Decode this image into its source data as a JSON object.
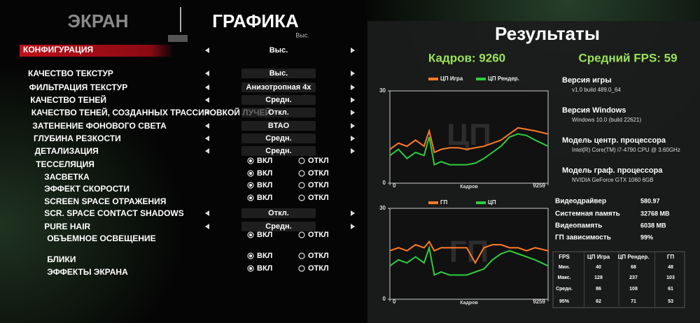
{
  "header": {
    "tabs": [
      "ЭКРАН",
      "ГРАФИКА"
    ],
    "preset": "Выс."
  },
  "config": {
    "label": "КОНФИГУРАЦИЯ",
    "value": "Выс."
  },
  "toggle_labels": [
    "ВКЛ",
    "ОТКЛ"
  ],
  "settings": [
    {
      "label": "КАЧЕСТВО ТЕКСТУР",
      "value": "Выс."
    },
    {
      "label": "ФИЛЬТРАЦИЯ ТЕКСТУР",
      "value": "Анизотропная 4х"
    },
    {
      "label": "КАЧЕСТВО ТЕНЕЙ",
      "value": "Средн."
    },
    {
      "label": "КАЧЕСТВО ТЕНЕЙ, СОЗДАННЫХ ТРАССИРОВКОЙ ЛУЧЕЙ",
      "value": "Откл."
    },
    {
      "label": "ЗАТЕНЕНИЕ ФОНОВОГО СВЕТА",
      "value": "BTAO"
    },
    {
      "label": "ГЛУБИНА РЕЗКОСТИ",
      "value": "Средн."
    },
    {
      "label": "ДЕТАЛИЗАЦИЯ",
      "value": "Средн."
    },
    {
      "label": "ТЕССЕЛЯЦИЯ",
      "selected": 0
    },
    {
      "label": "ЗАСВЕТКА",
      "selected": 0
    },
    {
      "label": "ЭФФЕКТ СКОРОСТИ",
      "selected": 0
    },
    {
      "label": "SCREEN SPACE ОТРАЖЕНИЯ",
      "selected": 0
    },
    {
      "label": "SCR. SPACE CONTACT SHADOWS",
      "value": "Откл."
    },
    {
      "label": "PURE HAIR",
      "value": "Средн."
    },
    {
      "label": "ОБЪЕМНОЕ ОСВЕЩЕНИЕ",
      "selected": 0
    },
    {
      "label": "БЛИКИ",
      "selected": 0
    },
    {
      "label": "ЭФФЕКТЫ ЭКРАНА",
      "selected": 0
    }
  ],
  "results": {
    "title": "Результаты",
    "frames": "Кадров: 9260",
    "avg_fps": "Средний FPS: 59",
    "charts": [
      {
        "type": "line",
        "watermark": "ЦП",
        "xlabel": "Кадров",
        "x": [
          0,
          500,
          1000,
          1500,
          2000,
          2300,
          2600,
          3000,
          3500,
          4000,
          4500,
          5000,
          5500,
          6000,
          6500,
          7000,
          7500,
          8000,
          8500,
          9259
        ],
        "xlim": [
          0,
          9259
        ],
        "xticks": [
          0,
          9259
        ],
        "ylim": [
          0,
          30
        ],
        "yticks": [
          0,
          30
        ],
        "series": [
          {
            "name": "ЦП Игра",
            "color": "#ff7a2a",
            "values": [
              11,
              13,
              12,
              14,
              12,
              17,
              10,
              11,
              11.5,
              11.5,
              11,
              11.5,
              12,
              13,
              14,
              16,
              18,
              17.5,
              17,
              16
            ]
          },
          {
            "name": "ЦП Рендер.",
            "color": "#2ecc40",
            "values": [
              9,
              11,
              8,
              10,
              9,
              15,
              6,
              7,
              6,
              6,
              6,
              6.5,
              8,
              10,
              12,
              15,
              16,
              15.5,
              14,
              12
            ]
          }
        ]
      },
      {
        "type": "line",
        "watermark": "ГП",
        "xlabel": "Кадров",
        "x": [
          0,
          500,
          1000,
          1500,
          2000,
          2300,
          2600,
          3000,
          3500,
          4000,
          4500,
          5000,
          5500,
          6000,
          6500,
          7000,
          7500,
          8000,
          8500,
          9259
        ],
        "xlim": [
          0,
          9259
        ],
        "xticks": [
          0,
          9259
        ],
        "ylim": [
          0,
          30
        ],
        "yticks": [
          0,
          30
        ],
        "series": [
          {
            "name": "ГП",
            "color": "#ff7a2a",
            "values": [
              16,
              17,
              16,
              18,
              17,
              19,
              16,
              17,
              17,
              17,
              17,
              12,
              17,
              18,
              18,
              17,
              17,
              16,
              17,
              16
            ]
          },
          {
            "name": "ЦП",
            "color": "#2ecc40",
            "values": [
              11,
              13,
              12,
              14,
              12,
              17,
              8,
              9,
              8,
              8,
              8,
              9,
              10,
              13,
              15,
              16,
              15,
              14,
              13,
              11
            ]
          }
        ]
      }
    ],
    "info": [
      {
        "label": "Версия игры",
        "value": "v1.0 build 489.0_64"
      },
      {
        "label": "Версия Windows",
        "value": "Windows 10.0 (build 22621)"
      },
      {
        "label": "Модель центр. процессора",
        "value": "Intel(R) Core(TM) i7-4790 CPU @ 3.60GHz"
      },
      {
        "label": "Модель граф. процессора",
        "value": "NVIDIA GeForce GTX 1060 6GB"
      }
    ],
    "specs": [
      {
        "label": "Видеодрайвер",
        "value": "580.97"
      },
      {
        "label": "Системная память",
        "value": "32768 MB"
      },
      {
        "label": "Видеопамять",
        "value": "6038 MB"
      },
      {
        "label": "ГП зависимость",
        "value": "99%"
      }
    ],
    "table": {
      "header": [
        "FPS",
        "ЦП Игра",
        "ЦП Рендер.",
        "ГП"
      ],
      "rows": [
        [
          "Мин.",
          "40",
          "68",
          "48"
        ],
        [
          "Макс.",
          "128",
          "237",
          "103"
        ],
        [
          "Средн.",
          "86",
          "108",
          "61"
        ],
        [
          "95%",
          "62",
          "71",
          "53"
        ]
      ]
    }
  }
}
